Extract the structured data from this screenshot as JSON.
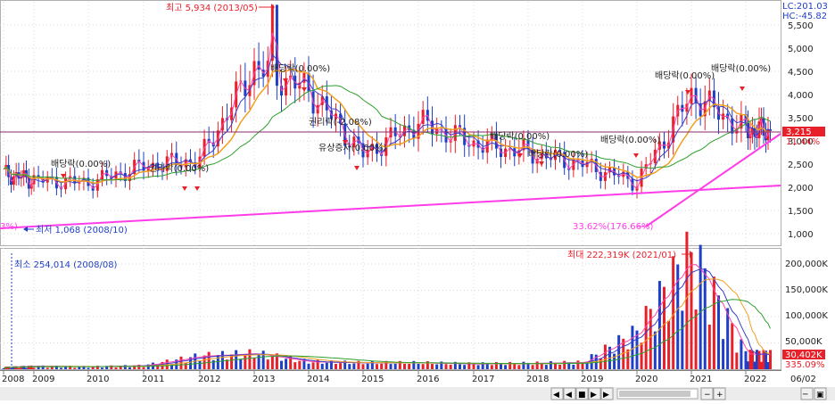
{
  "colors": {
    "up": "#e8202a",
    "down": "#1f3fc7",
    "ma5": "#ff44aa",
    "ma20": "#3c3cc8",
    "ma60": "#f0a020",
    "ma120": "#2ea02e",
    "trend": "#ff3de8",
    "refline": "#8a2a6e",
    "grid": "#d8d8d8",
    "label_red": "#e8202a",
    "label_blue": "#1f3fc7",
    "price_tag_bg": "#e8202a"
  },
  "top_right": {
    "lc": "LC:201.03",
    "hc": "HC:-45.82"
  },
  "price_axis": {
    "ticks": [
      "5,500",
      "5,000",
      "4,500",
      "4,000",
      "3,500",
      "3,000",
      "2,500",
      "2,000",
      "1,500",
      "1,000"
    ]
  },
  "volume_axis": {
    "ticks": [
      "200,000K",
      "150,000K",
      "100,000K",
      "50,000K"
    ]
  },
  "x_axis": {
    "labels": [
      "2008",
      "2009",
      "2010",
      "2011",
      "2012",
      "2013",
      "2014",
      "2015",
      "2016",
      "2017",
      "2018",
      "2019",
      "2020",
      "2021",
      "2022",
      "06/02"
    ]
  },
  "price_tags": {
    "current": "3,215",
    "pct": "11.44%"
  },
  "volume_tags": {
    "current": "30,402K",
    "pct": "335.09%"
  },
  "annotations": {
    "high": "최고 5,934 (2013/05)",
    "low": "최저 1,068 (2008/10)",
    "left_pct": "3%)",
    "trough": "33.62%(176.66%)",
    "vol_max": "최대 222,319K (2021/01)",
    "vol_min": "최소 254,014 (2008/08)"
  },
  "events": [
    {
      "text": "배당락(0.00%)",
      "color": "black"
    },
    {
      "text": "권리락(0.00%)",
      "color": "black"
    },
    {
      "text": "배당락(0.00%)",
      "color": "black"
    },
    {
      "text": "권리락(-2.08%)",
      "color": "black"
    },
    {
      "text": "유상증자(0.00%)",
      "color": "black"
    },
    {
      "text": "배당락(0.00%)",
      "color": "black"
    },
    {
      "text": "배당락(0.00%)",
      "color": "black"
    },
    {
      "text": "배당락(0.00%)",
      "color": "black"
    },
    {
      "text": "배당락(0.00%)",
      "color": "black"
    },
    {
      "text": "배당락(0.00%)",
      "color": "black"
    }
  ],
  "controls": {
    "first": "◀",
    "prev": "◀",
    "stop": "■",
    "next": "▶",
    "last": "▶",
    "minus": "−",
    "plus": "+",
    "zoom_a": "─",
    "zoom_b": "▣"
  },
  "chart_data": [
    {
      "type": "candlestick",
      "title": "",
      "x": [
        "2008",
        "2009",
        "2010",
        "2011",
        "2012",
        "2013",
        "2014",
        "2015",
        "2016",
        "2017",
        "2018",
        "2019",
        "2020",
        "2021",
        "2022"
      ],
      "ylim": [
        1000,
        5934
      ],
      "grid": true,
      "series": [
        {
          "name": "close",
          "values": [
            2300,
            2150,
            2100,
            2450,
            2600,
            4600,
            4100,
            2700,
            3400,
            2950,
            2750,
            2500,
            2100,
            4000,
            3215
          ]
        }
      ]
    },
    {
      "type": "bar",
      "title": "",
      "x": [
        "2008",
        "2009",
        "2010",
        "2011",
        "2012",
        "2013",
        "2014",
        "2015",
        "2016",
        "2017",
        "2018",
        "2019",
        "2020",
        "2021",
        "2022"
      ],
      "ylim": [
        0,
        222319
      ],
      "grid": true,
      "series": [
        {
          "name": "volume",
          "values": [
            4000,
            6000,
            5000,
            7000,
            25000,
            30000,
            14000,
            12000,
            12000,
            10000,
            11000,
            13000,
            70000,
            222319,
            30402
          ]
        }
      ]
    }
  ]
}
